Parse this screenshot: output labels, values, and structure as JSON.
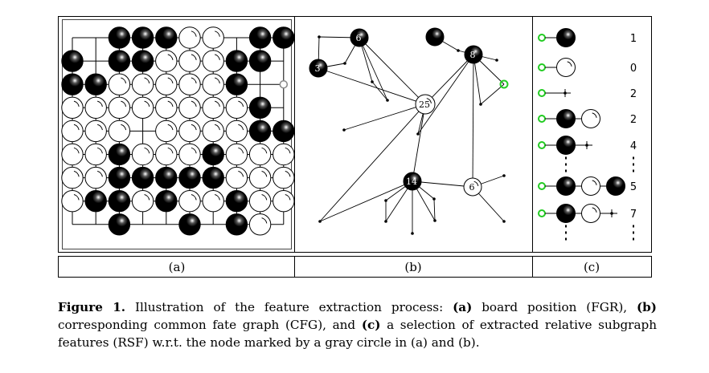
{
  "panel_labels": [
    "(a)",
    "(b)",
    "(c)"
  ],
  "board": {
    "rows": [
      "..BBBWW.BB",
      "B.BBWWWBB.",
      "BBWWWWWB.g",
      "WWWWWWWWB.",
      "WWW.WWWWBB",
      "WWBWWWBWWW",
      "WWBBBBBWWW",
      "WBBWBWWBWW",
      "..B..B.BW."
    ]
  },
  "cfg": {
    "nodes": [
      {
        "id": "n6a",
        "label": "6",
        "color": "black"
      },
      {
        "id": "n3",
        "label": "3",
        "color": "black"
      },
      {
        "id": "n8",
        "label": "8",
        "color": "black"
      },
      {
        "id": "nb",
        "label": "",
        "color": "black"
      },
      {
        "id": "n25",
        "label": "25",
        "color": "white"
      },
      {
        "id": "n14",
        "label": "14",
        "color": "black"
      },
      {
        "id": "n6b",
        "label": "6",
        "color": "white"
      }
    ]
  },
  "rsf": {
    "rows": [
      {
        "pattern": [
          "black"
        ],
        "count": "1"
      },
      {
        "pattern": [
          "white"
        ],
        "count": "0"
      },
      {
        "pattern": [
          "empty"
        ],
        "count": "2"
      },
      {
        "pattern": [
          "black",
          "white"
        ],
        "count": "2"
      },
      {
        "pattern": [
          "black",
          "empty"
        ],
        "count": "4"
      },
      {
        "pattern": [
          "black",
          "white",
          "black"
        ],
        "count": "5"
      },
      {
        "pattern": [
          "black",
          "white",
          "empty"
        ],
        "count": "7"
      }
    ],
    "marker_color": "#22cc22"
  },
  "caption": {
    "label": "Figure 1.",
    "text_1": " Illustration of the feature extraction process: ",
    "bold_a": "(a)",
    "text_2": " board position (FGR), ",
    "bold_b": "(b)",
    "text_3": " corresponding common fate graph (CFG), and ",
    "bold_c": "(c)",
    "text_4": " a selection of extracted relative subgraph features (RSF) w.r.t. the node marked by a gray circle in (a) and (b)."
  }
}
